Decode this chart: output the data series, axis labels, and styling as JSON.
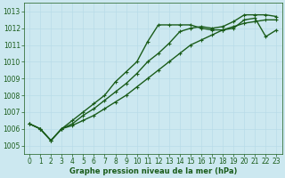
{
  "xlabel": "Graphe pression niveau de la mer (hPa)",
  "bg_color": "#cce8f0",
  "grid_color": "#aad4e0",
  "line_color": "#1a5c1a",
  "ylim": [
    1004.5,
    1013.5
  ],
  "xlim": [
    -0.5,
    23.5
  ],
  "yticks": [
    1005,
    1006,
    1007,
    1008,
    1009,
    1010,
    1011,
    1012,
    1013
  ],
  "xticks": [
    0,
    1,
    2,
    3,
    4,
    5,
    6,
    7,
    8,
    9,
    10,
    11,
    12,
    13,
    14,
    15,
    16,
    17,
    18,
    19,
    20,
    21,
    22,
    23
  ],
  "series": [
    {
      "y": [
        1006.3,
        1006.0,
        1005.3,
        1006.0,
        1006.5,
        1007.0,
        1007.5,
        1008.0,
        1008.8,
        1009.4,
        1010.0,
        1011.2,
        1012.2,
        1012.2,
        1012.2,
        1012.2,
        1012.0,
        1011.9,
        1011.9,
        1012.0,
        1012.5,
        1012.6,
        1011.5,
        1011.9
      ],
      "ls": "-",
      "lw": 1.0,
      "marker": "+"
    },
    {
      "y": [
        1006.3,
        1006.0,
        1005.3,
        1006.0,
        1006.3,
        1006.8,
        1007.2,
        1007.7,
        1008.2,
        1008.7,
        1009.3,
        1010.0,
        1010.5,
        1011.1,
        1011.8,
        1012.0,
        1012.1,
        1012.0,
        1012.1,
        1012.4,
        1012.8,
        1012.8,
        1012.8,
        1012.7
      ],
      "ls": "-",
      "lw": 1.0,
      "marker": "+"
    },
    {
      "y": [
        1006.3,
        1006.0,
        1005.3,
        1006.0,
        1006.2,
        1006.5,
        1006.8,
        1007.2,
        1007.6,
        1008.0,
        1008.5,
        1009.0,
        1009.5,
        1010.0,
        1010.5,
        1011.0,
        1011.3,
        1011.6,
        1011.9,
        1012.1,
        1012.3,
        1012.4,
        1012.5,
        1012.5
      ],
      "ls": "-",
      "lw": 1.0,
      "marker": "+"
    }
  ],
  "font_color": "#1a5c1a",
  "markersize": 3,
  "tick_fontsize": 5.5,
  "xlabel_fontsize": 6.0
}
